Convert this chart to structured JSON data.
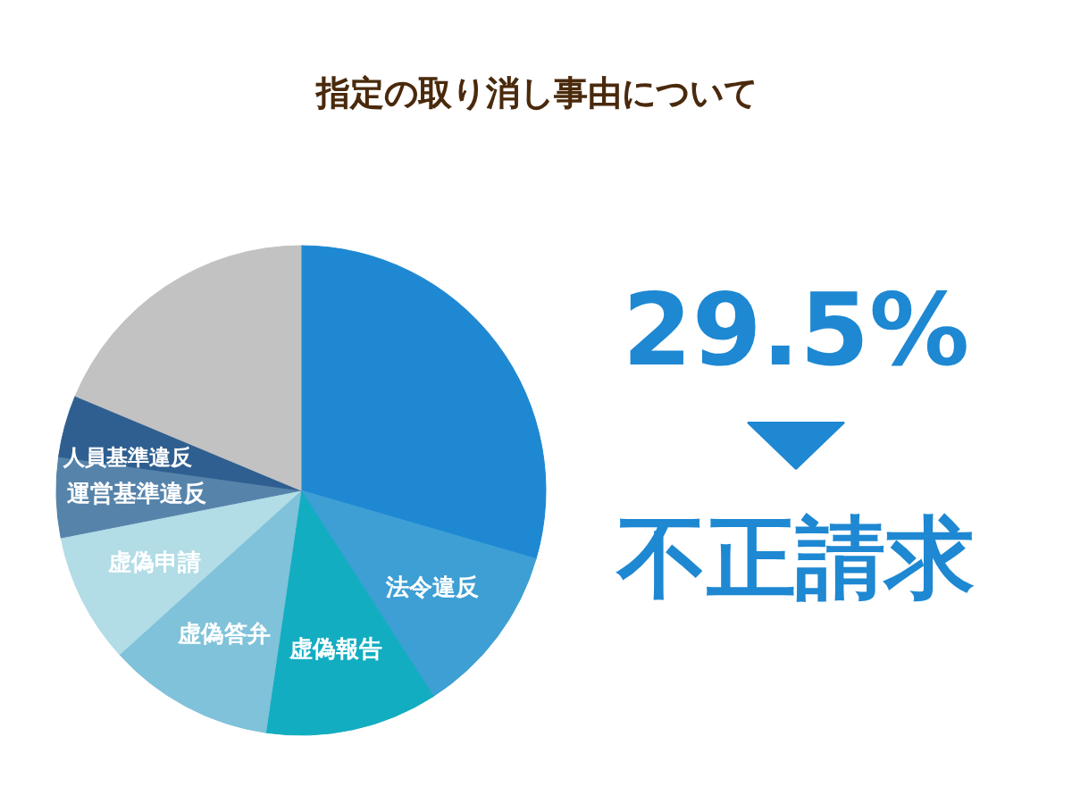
{
  "chart_data": {
    "type": "pie",
    "title": "指定の取り消し事由について",
    "categories": [
      "不正請求",
      "法令違反",
      "虚偽報告",
      "虚偽答弁",
      "虚偽申請",
      "運営基準違反",
      "人員基準違反",
      null
    ],
    "values": [
      29.5,
      11.4,
      11.4,
      11.0,
      8.6,
      5.3,
      4.1,
      18.7
    ],
    "colors": [
      "#1e88d2",
      "#3d9fd3",
      "#12adc1",
      "#7fc2d9",
      "#b2dce6",
      "#5683aa",
      "#2f5f90",
      "#c2c2c2"
    ],
    "value_labels": [
      "29.5%",
      null,
      null,
      null,
      null,
      null,
      null,
      null
    ]
  }
}
